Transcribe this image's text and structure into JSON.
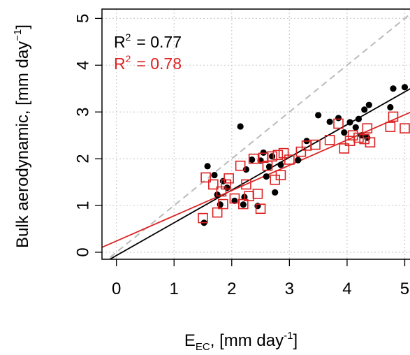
{
  "chart_data": {
    "type": "scatter",
    "xlabel_base": "E",
    "xlabel_sub": "EC",
    "xlabel_rest": ", [mm day",
    "xlabel_sup": "-1",
    "xlabel_close": "]",
    "ylabel_main": "Bulk aerodynamic, [mm day",
    "ylabel_sup": "−1",
    "ylabel_close": "]",
    "xlim": [
      -0.25,
      5.2
    ],
    "ylim": [
      -0.15,
      5.2
    ],
    "x_ticks": [
      "0",
      "1",
      "2",
      "3",
      "4",
      "5"
    ],
    "y_ticks": [
      "0",
      "1",
      "2",
      "3",
      "4",
      "5"
    ],
    "grid": true,
    "one_to_one_line": {
      "color": "#bbbbbb",
      "dash": true
    },
    "annotations": [
      {
        "prefix": "R",
        "sup": "2",
        "value": "= 0.77",
        "color": "#000000"
      },
      {
        "prefix": "R",
        "sup": "2",
        "value": "= 0.78",
        "color": "#dd2222"
      }
    ],
    "series": [
      {
        "marker": "filled-circle",
        "color": "#000000",
        "fit": {
          "intercept": -0.07,
          "slope": 0.7
        },
        "points": [
          [
            1.52,
            0.63
          ],
          [
            1.58,
            1.84
          ],
          [
            1.7,
            1.65
          ],
          [
            1.75,
            1.23
          ],
          [
            1.8,
            1.02
          ],
          [
            1.85,
            1.52
          ],
          [
            1.92,
            1.38
          ],
          [
            2.05,
            1.1
          ],
          [
            2.15,
            2.69
          ],
          [
            2.2,
            1.02
          ],
          [
            2.25,
            1.77
          ],
          [
            2.22,
            1.18
          ],
          [
            2.35,
            1.98
          ],
          [
            2.45,
            0.99
          ],
          [
            2.5,
            1.96
          ],
          [
            2.55,
            2.13
          ],
          [
            2.6,
            1.62
          ],
          [
            2.65,
            1.83
          ],
          [
            2.7,
            2.05
          ],
          [
            2.75,
            1.28
          ],
          [
            2.85,
            1.87
          ],
          [
            3.15,
            1.97
          ],
          [
            3.3,
            2.38
          ],
          [
            3.5,
            2.93
          ],
          [
            3.7,
            2.79
          ],
          [
            3.85,
            2.87
          ],
          [
            3.95,
            2.56
          ],
          [
            4.05,
            2.78
          ],
          [
            4.15,
            2.67
          ],
          [
            4.2,
            2.85
          ],
          [
            4.25,
            2.5
          ],
          [
            4.3,
            3.05
          ],
          [
            4.38,
            3.15
          ],
          [
            4.75,
            3.1
          ],
          [
            4.8,
            3.5
          ],
          [
            5.0,
            3.53
          ],
          [
            4.35,
            2.45
          ]
        ]
      },
      {
        "marker": "open-square",
        "color": "#dd2222",
        "fit": {
          "intercept": 0.24,
          "slope": 0.54
        },
        "points": [
          [
            1.5,
            0.73
          ],
          [
            1.55,
            1.6
          ],
          [
            1.68,
            1.45
          ],
          [
            1.75,
            0.85
          ],
          [
            1.82,
            1.3
          ],
          [
            1.85,
            1.03
          ],
          [
            1.9,
            1.45
          ],
          [
            1.95,
            1.58
          ],
          [
            2.05,
            1.15
          ],
          [
            2.15,
            1.85
          ],
          [
            2.2,
            1.03
          ],
          [
            2.25,
            1.45
          ],
          [
            2.3,
            1.2
          ],
          [
            2.38,
            2.0
          ],
          [
            2.45,
            1.25
          ],
          [
            2.5,
            0.93
          ],
          [
            2.55,
            2.02
          ],
          [
            2.62,
            1.85
          ],
          [
            2.7,
            2.05
          ],
          [
            2.75,
            1.55
          ],
          [
            2.8,
            2.08
          ],
          [
            2.85,
            1.65
          ],
          [
            2.9,
            2.12
          ],
          [
            3.0,
            1.98
          ],
          [
            3.2,
            2.15
          ],
          [
            3.3,
            2.28
          ],
          [
            3.45,
            2.3
          ],
          [
            3.7,
            2.4
          ],
          [
            3.85,
            2.75
          ],
          [
            3.95,
            2.22
          ],
          [
            4.05,
            2.38
          ],
          [
            4.1,
            2.5
          ],
          [
            4.2,
            2.45
          ],
          [
            4.3,
            2.42
          ],
          [
            4.35,
            2.65
          ],
          [
            4.4,
            2.35
          ],
          [
            4.75,
            2.68
          ],
          [
            4.8,
            2.9
          ],
          [
            5.0,
            2.65
          ]
        ]
      }
    ]
  }
}
